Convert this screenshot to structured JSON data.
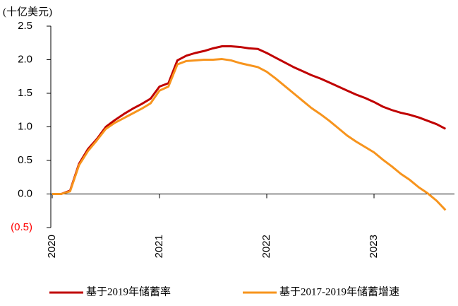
{
  "chart_data": {
    "type": "line",
    "y_label": "(十亿美元)",
    "x": [
      2020,
      2020.0833,
      2020.1667,
      2020.25,
      2020.3333,
      2020.4167,
      2020.5,
      2020.5833,
      2020.6667,
      2020.75,
      2020.8333,
      2020.9167,
      2021,
      2021.0833,
      2021.1667,
      2021.25,
      2021.3333,
      2021.4167,
      2021.5,
      2021.5833,
      2021.6667,
      2021.75,
      2021.8333,
      2021.9167,
      2022,
      2022.0833,
      2022.1667,
      2022.25,
      2022.3333,
      2022.4167,
      2022.5,
      2022.5833,
      2022.6667,
      2022.75,
      2022.8333,
      2022.9167,
      2023,
      2023.0833,
      2023.1667,
      2023.25,
      2023.3333,
      2023.4167,
      2023.5,
      2023.5833,
      2023.6667
    ],
    "series": [
      {
        "name": "基于2019年储蓄率",
        "color": "#c00000",
        "values": [
          0,
          0,
          0.05,
          0.45,
          0.67,
          0.82,
          1.0,
          1.1,
          1.19,
          1.27,
          1.34,
          1.42,
          1.6,
          1.65,
          1.99,
          2.06,
          2.1,
          2.13,
          2.17,
          2.2,
          2.2,
          2.19,
          2.17,
          2.16,
          2.1,
          2.03,
          1.96,
          1.89,
          1.83,
          1.77,
          1.72,
          1.66,
          1.6,
          1.54,
          1.48,
          1.43,
          1.37,
          1.3,
          1.25,
          1.21,
          1.18,
          1.14,
          1.09,
          1.04,
          0.97
        ]
      },
      {
        "name": "基于2017-2019年储蓄增速",
        "color": "#f7941d",
        "values": [
          0,
          0,
          0.04,
          0.43,
          0.64,
          0.8,
          0.97,
          1.06,
          1.13,
          1.2,
          1.27,
          1.35,
          1.54,
          1.6,
          1.93,
          1.98,
          1.99,
          2.0,
          2.0,
          2.01,
          1.99,
          1.95,
          1.92,
          1.89,
          1.82,
          1.72,
          1.61,
          1.5,
          1.39,
          1.28,
          1.19,
          1.09,
          0.98,
          0.87,
          0.78,
          0.7,
          0.62,
          0.51,
          0.41,
          0.3,
          0.21,
          0.1,
          0.01,
          -0.1,
          -0.24
        ]
      }
    ],
    "xlim": [
      2020,
      2023.75
    ],
    "xticks": [
      2020,
      2021,
      2022,
      2023
    ],
    "ylim": [
      -0.5,
      2.5
    ],
    "yticks": [
      {
        "value": -0.5,
        "label": "(0.5)"
      },
      {
        "value": 0,
        "label": "0.0"
      },
      0.5,
      {
        "value": 1,
        "label": "1.0"
      },
      1.5,
      {
        "value": 2,
        "label": "2.0"
      },
      2.5
    ],
    "negative_tick_color": "#ff0000",
    "grid": false,
    "legend": "bottom"
  }
}
